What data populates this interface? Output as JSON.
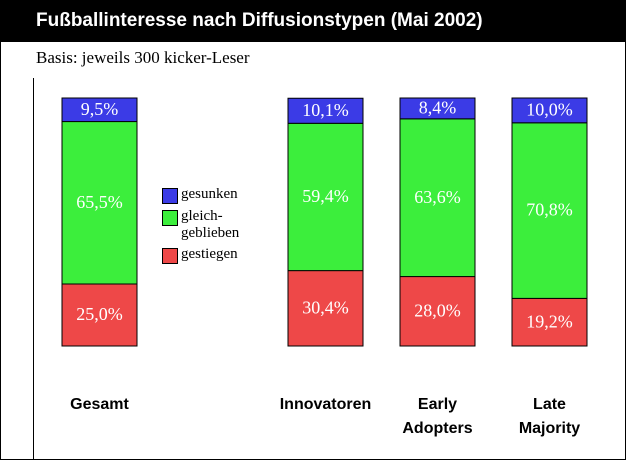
{
  "chart_data": {
    "type": "stacked_bar",
    "title": "Fußballinteresse nach Diffusionstypen (Mai 2002)",
    "subtitle": "Basis: jeweils 300 kicker-Leser",
    "categories": [
      "Gesamt",
      "Innovatoren",
      "Early Adopters",
      "Late Majority"
    ],
    "series": [
      {
        "name": "gesunken",
        "color": "#3b3be6",
        "values": [
          9.5,
          10.1,
          8.4,
          10.0
        ],
        "value_labels": [
          "9,5%",
          "10,1%",
          "8,4%",
          "10,0%"
        ]
      },
      {
        "name": "gleich-geblieben",
        "color": "#3cee3c",
        "values": [
          65.5,
          59.4,
          63.6,
          70.8
        ],
        "value_labels": [
          "65,5%",
          "59,4%",
          "63,6%",
          "70,8%"
        ]
      },
      {
        "name": "gestiegen",
        "color": "#ee4848",
        "values": [
          25.0,
          30.4,
          28.0,
          19.2
        ],
        "value_labels": [
          "25,0%",
          "30,4%",
          "28,0%",
          "19,2%"
        ]
      }
    ],
    "ylim": [
      0,
      100
    ]
  }
}
